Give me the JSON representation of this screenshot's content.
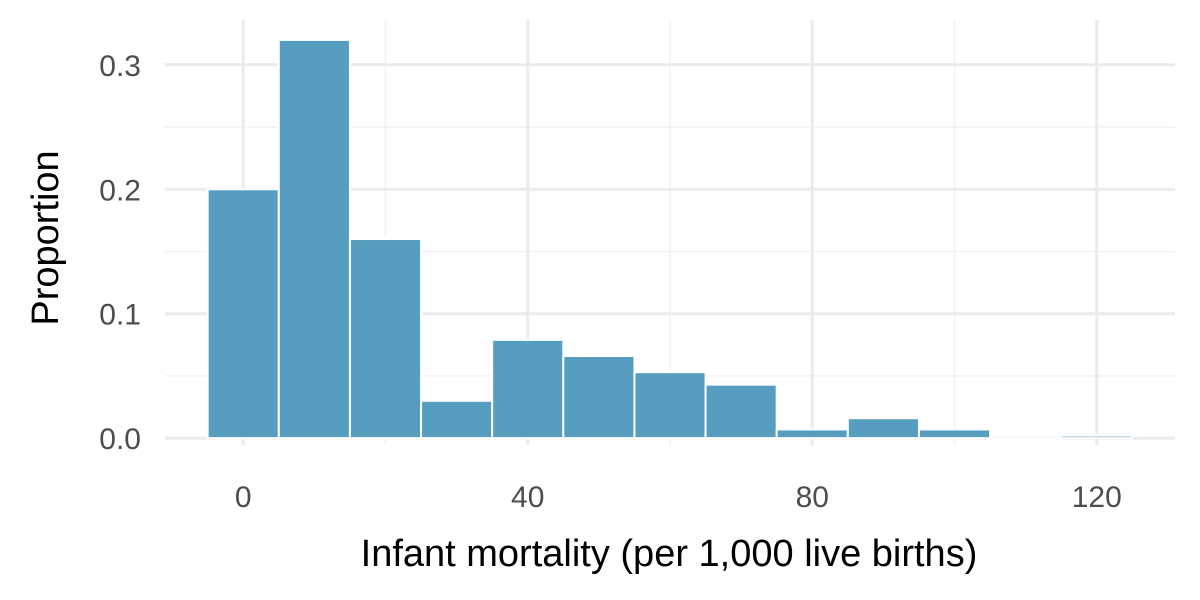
{
  "chart_data": {
    "type": "bar",
    "xlabel": "Infant mortality (per 1,000 live births)",
    "ylabel": "Proportion",
    "bin_width": 10,
    "bins": [
      {
        "x_start": -5,
        "x_end": 5,
        "value": 0.2
      },
      {
        "x_start": 5,
        "x_end": 15,
        "value": 0.32
      },
      {
        "x_start": 15,
        "x_end": 25,
        "value": 0.16
      },
      {
        "x_start": 25,
        "x_end": 35,
        "value": 0.03
      },
      {
        "x_start": 35,
        "x_end": 45,
        "value": 0.079
      },
      {
        "x_start": 45,
        "x_end": 55,
        "value": 0.066
      },
      {
        "x_start": 55,
        "x_end": 65,
        "value": 0.053
      },
      {
        "x_start": 65,
        "x_end": 75,
        "value": 0.043
      },
      {
        "x_start": 75,
        "x_end": 85,
        "value": 0.007
      },
      {
        "x_start": 85,
        "x_end": 95,
        "value": 0.016
      },
      {
        "x_start": 95,
        "x_end": 105,
        "value": 0.007
      },
      {
        "x_start": 105,
        "x_end": 115,
        "value": 0
      },
      {
        "x_start": 115,
        "x_end": 125,
        "value": 0.002
      }
    ],
    "xlim": [
      -11,
      131
    ],
    "ylim": [
      -0.0055,
      0.336
    ],
    "x_ticks": [
      0,
      40,
      80,
      120
    ],
    "x_tick_labels": [
      "0",
      "40",
      "80",
      "120"
    ],
    "x_minor_ticks": [
      20,
      60,
      100
    ],
    "y_ticks": [
      0,
      0.1,
      0.2,
      0.3
    ],
    "y_tick_labels": [
      "0.0",
      "0.1",
      "0.2",
      "0.3"
    ],
    "y_minor_ticks": [
      0.05,
      0.15,
      0.25
    ],
    "grid": true,
    "legend": "none",
    "colors": {
      "bar_fill": "#569dc0",
      "bar_outline": "#ffffff"
    }
  }
}
